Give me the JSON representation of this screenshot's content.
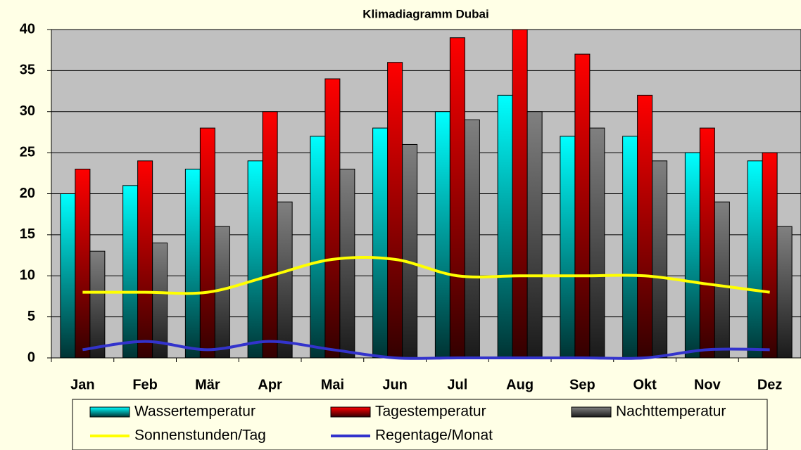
{
  "chart_data": {
    "type": "bar",
    "title": "Klimadiagramm Dubai",
    "categories": [
      "Jan",
      "Feb",
      "Mär",
      "Apr",
      "Mai",
      "Jun",
      "Jul",
      "Aug",
      "Sep",
      "Okt",
      "Nov",
      "Dez"
    ],
    "series": [
      {
        "name": "Wassertemperatur",
        "type": "bar",
        "color": "#00ffff",
        "values": [
          20,
          21,
          23,
          24,
          27,
          28,
          30,
          32,
          27,
          27,
          25,
          24
        ]
      },
      {
        "name": "Tagestemperatur",
        "type": "bar",
        "color": "#ff0000",
        "values": [
          23,
          24,
          28,
          30,
          34,
          36,
          39,
          40,
          37,
          32,
          28,
          25
        ]
      },
      {
        "name": "Nachttemperatur",
        "type": "bar",
        "color": "#808080",
        "values": [
          13,
          14,
          16,
          19,
          23,
          26,
          29,
          30,
          28,
          24,
          19,
          16
        ]
      },
      {
        "name": "Sonnenstunden/Tag",
        "type": "line",
        "color": "#ffff00",
        "values": [
          8,
          8,
          8,
          10,
          12,
          12,
          10,
          10,
          10,
          10,
          9,
          8
        ]
      },
      {
        "name": "Regentage/Monat",
        "type": "line",
        "color": "#3333cc",
        "values": [
          1,
          2,
          1,
          2,
          1,
          0,
          0,
          0,
          0,
          0,
          1,
          1
        ]
      }
    ],
    "ylim": [
      0,
      40
    ],
    "yticks": [
      0,
      5,
      10,
      15,
      20,
      25,
      30,
      35,
      40
    ],
    "grid": true
  }
}
